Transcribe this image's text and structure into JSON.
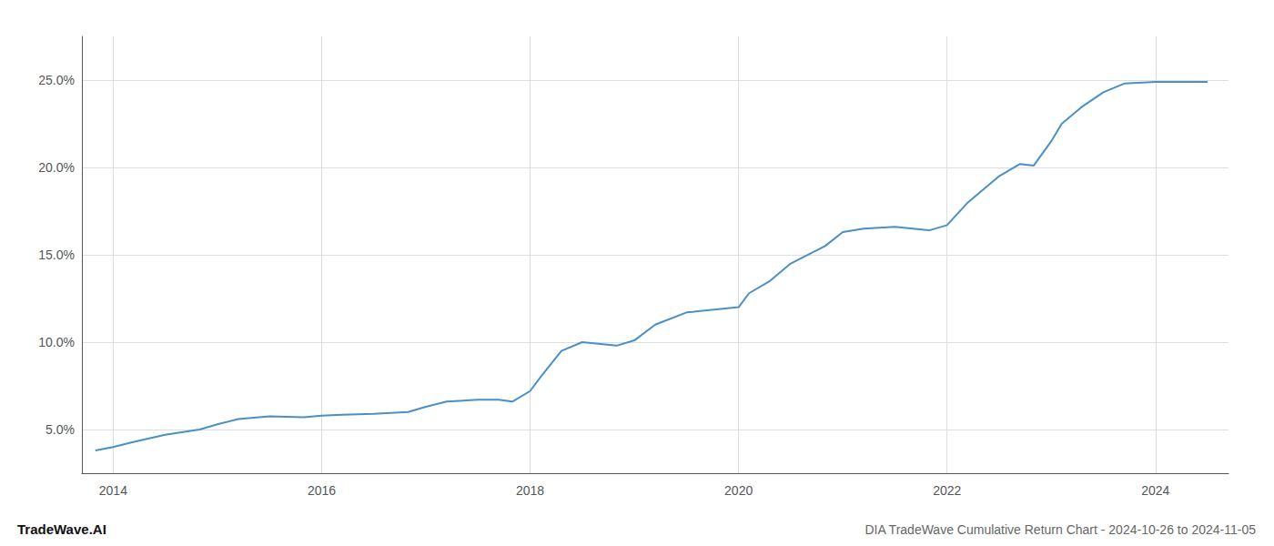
{
  "chart_data": {
    "type": "line",
    "title": "DIA TradeWave Cumulative Return Chart - 2024-10-26 to 2024-11-05",
    "annotations": [
      "TradeWave.AI"
    ],
    "x": [
      2013.83,
      2014.0,
      2014.2,
      2014.5,
      2014.83,
      2015.0,
      2015.2,
      2015.5,
      2015.83,
      2016.0,
      2016.2,
      2016.5,
      2016.83,
      2017.0,
      2017.2,
      2017.5,
      2017.7,
      2017.83,
      2018.0,
      2018.1,
      2018.3,
      2018.5,
      2018.83,
      2019.0,
      2019.2,
      2019.5,
      2019.83,
      2020.0,
      2020.1,
      2020.3,
      2020.5,
      2020.83,
      2021.0,
      2021.2,
      2021.5,
      2021.83,
      2022.0,
      2022.2,
      2022.5,
      2022.7,
      2022.83,
      2023.0,
      2023.1,
      2023.3,
      2023.5,
      2023.7,
      2023.83,
      2024.0,
      2024.2,
      2024.5
    ],
    "values": [
      3.8,
      4.0,
      4.3,
      4.7,
      5.0,
      5.3,
      5.6,
      5.75,
      5.7,
      5.8,
      5.85,
      5.9,
      6.0,
      6.3,
      6.6,
      6.7,
      6.7,
      6.6,
      7.2,
      8.0,
      9.5,
      10.0,
      9.8,
      10.1,
      11.0,
      11.7,
      11.9,
      12.0,
      12.8,
      13.5,
      14.5,
      15.5,
      16.3,
      16.5,
      16.6,
      16.4,
      16.7,
      18.0,
      19.5,
      20.2,
      20.1,
      21.5,
      22.5,
      23.5,
      24.3,
      24.8,
      24.85,
      24.9,
      24.9,
      24.9
    ],
    "color": "#4a90c4",
    "xlim": [
      2013.7,
      2024.7
    ],
    "xticks": [
      2014,
      2016,
      2018,
      2020,
      2022,
      2024
    ],
    "ylim": [
      2.5,
      27.5
    ],
    "yticks": [
      {
        "value": 5.0,
        "label": "5.0%"
      },
      {
        "value": 10.0,
        "label": "10.0%"
      },
      {
        "value": 15.0,
        "label": "15.0%"
      },
      {
        "value": 20.0,
        "label": "20.0%"
      },
      {
        "value": 25.0,
        "label": "25.0%"
      }
    ],
    "grid": true
  }
}
